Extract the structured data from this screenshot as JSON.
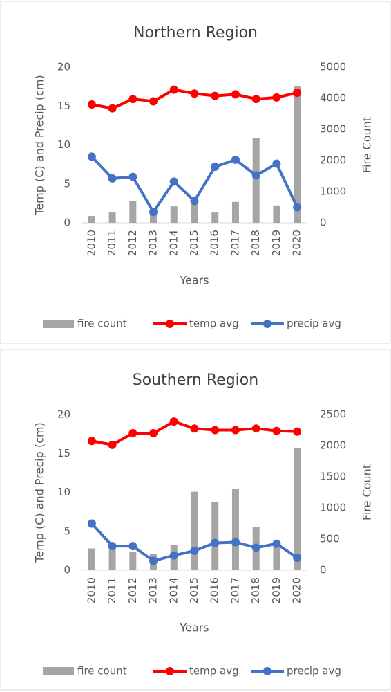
{
  "chart_data": [
    {
      "type": "combo",
      "title": "Northern Region",
      "x_label": "Years",
      "y_label": "Temp (C) and Precip (cm)",
      "y2_label": "Fire Count",
      "categories": [
        "2010",
        "2011",
        "2012",
        "2013",
        "2014",
        "2015",
        "2016",
        "2017",
        "2018",
        "2019",
        "2020"
      ],
      "ylim": [
        0,
        20
      ],
      "yticks": [
        0,
        5,
        10,
        15,
        20
      ],
      "y2lim": [
        0,
        5000
      ],
      "y2ticks": [
        0,
        1000,
        2000,
        3000,
        4000,
        5000
      ],
      "series": [
        {
          "name": "fire count",
          "type": "bar",
          "axis": "y2",
          "color": "#a5a5a5",
          "values": [
            220,
            330,
            710,
            300,
            530,
            600,
            330,
            670,
            2730,
            560,
            4380
          ]
        },
        {
          "name": "temp avg",
          "type": "line",
          "color": "#ff0000",
          "values": [
            15.2,
            14.7,
            15.9,
            15.6,
            17.1,
            16.6,
            16.3,
            16.5,
            15.9,
            16.1,
            16.7
          ]
        },
        {
          "name": "precip avg",
          "type": "line",
          "color": "#4472c4",
          "values": [
            8.5,
            5.7,
            5.9,
            1.4,
            5.3,
            2.8,
            7.2,
            8.1,
            6.1,
            7.6,
            2.0
          ]
        }
      ]
    },
    {
      "type": "combo",
      "title": "Southern Region",
      "x_label": "Years",
      "y_label": "Temp (C) and Precip (cm)",
      "y2_label": "Fire Count",
      "categories": [
        "2010",
        "2011",
        "2012",
        "2013",
        "2014",
        "2015",
        "2016",
        "2017",
        "2018",
        "2019",
        "2020"
      ],
      "ylim": [
        0,
        20
      ],
      "yticks": [
        0,
        5,
        10,
        15,
        20
      ],
      "y2lim": [
        0,
        2500
      ],
      "y2ticks": [
        0,
        500,
        1000,
        1500,
        2000,
        2500
      ],
      "series": [
        {
          "name": "fire count",
          "type": "bar",
          "axis": "y2",
          "color": "#a5a5a5",
          "values": [
            350,
            380,
            290,
            260,
            400,
            1260,
            1090,
            1300,
            690,
            410,
            1960
          ]
        },
        {
          "name": "temp avg",
          "type": "line",
          "color": "#ff0000",
          "values": [
            16.6,
            16.1,
            17.6,
            17.6,
            19.1,
            18.2,
            18.0,
            18.0,
            18.2,
            17.9,
            17.8
          ]
        },
        {
          "name": "precip avg",
          "type": "line",
          "color": "#4472c4",
          "values": [
            6.0,
            3.1,
            3.1,
            1.2,
            1.9,
            2.5,
            3.5,
            3.6,
            2.9,
            3.4,
            1.6
          ]
        }
      ]
    }
  ]
}
